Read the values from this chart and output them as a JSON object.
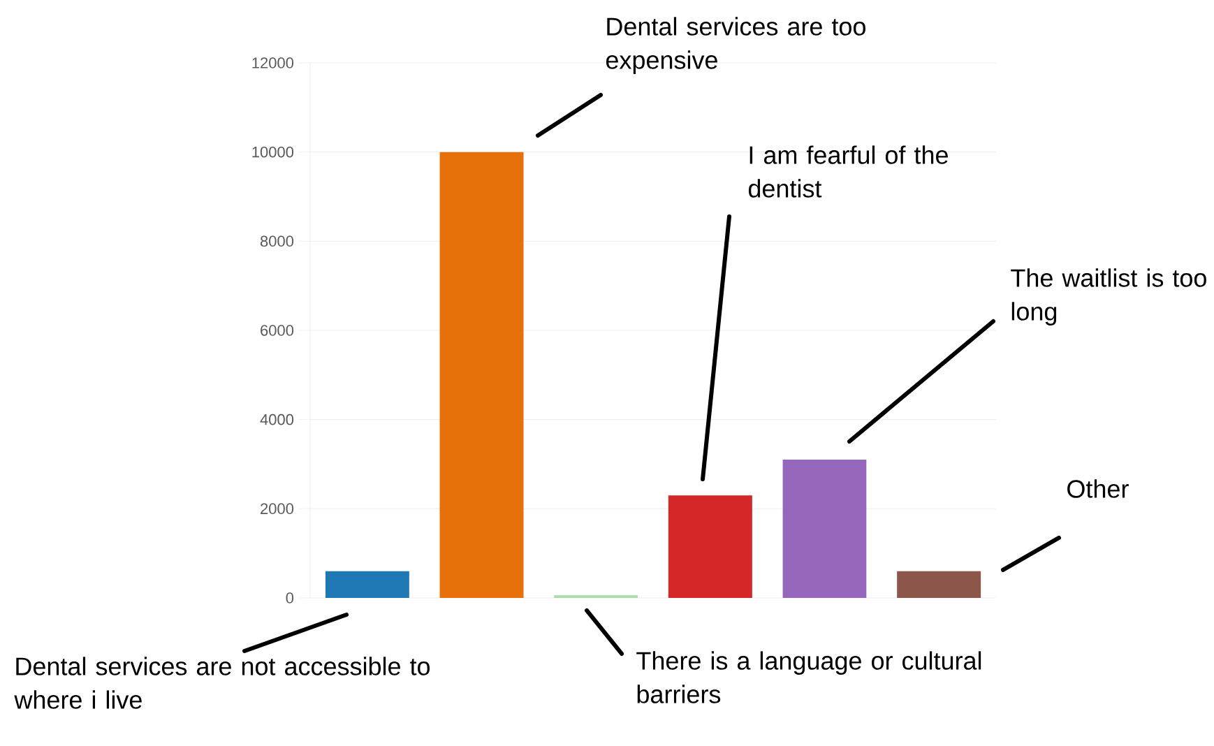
{
  "chart_data": {
    "type": "bar",
    "categories": [
      null,
      null,
      null,
      null,
      null,
      null
    ],
    "values": [
      600,
      10000,
      60,
      2300,
      3100,
      600
    ],
    "colors": [
      "#1f77b4",
      "#e8700a",
      "#a8dca8",
      "#d62728",
      "#9467bd",
      "#8c564b"
    ],
    "ylim": [
      0,
      12000
    ],
    "yticks": [
      0,
      2000,
      4000,
      6000,
      8000,
      10000,
      12000
    ],
    "grid": "y",
    "annotations": [
      "Dental services are not accessible to where i live",
      "Dental services are too expensive",
      "There is a language or cultural barriers",
      "I am fearful of the dentist",
      "The waitlist is too long",
      "Other"
    ]
  }
}
